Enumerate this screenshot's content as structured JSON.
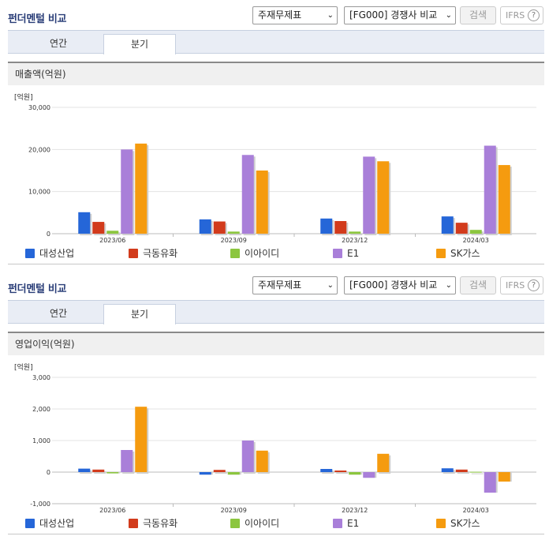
{
  "panels": [
    {
      "title": "펀더멘털 비교",
      "select1": "주재무제표",
      "select2": "[FG000] 경쟁사 비교",
      "search_label": "검색",
      "ifrs_label": "IFRS",
      "ifrs_help": "?",
      "tabs": [
        "연간",
        "분기"
      ],
      "active_tab": "분기",
      "metric": "매출액(억원)",
      "legend": [
        "대성산업",
        "극동유화",
        "이아이디",
        "E1",
        "SK가스"
      ]
    },
    {
      "title": "펀더멘털 비교",
      "select1": "주재무제표",
      "select2": "[FG000] 경쟁사 비교",
      "search_label": "검색",
      "ifrs_label": "IFRS",
      "ifrs_help": "?",
      "tabs": [
        "연간",
        "분기"
      ],
      "active_tab": "분기",
      "metric": "영업이익(억원)",
      "legend": [
        "대성산업",
        "극동유화",
        "이아이디",
        "E1",
        "SK가스"
      ]
    }
  ],
  "colors": [
    "#2566d8",
    "#d23b1c",
    "#8cc63f",
    "#a97fd9",
    "#f59b0f"
  ],
  "chart_data": [
    {
      "type": "bar",
      "unit_label": "[억원]",
      "categories": [
        "2023/06",
        "2023/09",
        "2023/12",
        "2024/03"
      ],
      "ylim": [
        0,
        30000
      ],
      "yticks": [
        0,
        10000,
        20000,
        30000
      ],
      "ytick_labels": [
        "0",
        "10,000",
        "20,000",
        "30,000"
      ],
      "grid": true,
      "legend_position": "bottom",
      "series": [
        {
          "name": "대성산업",
          "values": [
            5100,
            3400,
            3600,
            4100
          ]
        },
        {
          "name": "극동유화",
          "values": [
            2800,
            2900,
            3000,
            2600
          ]
        },
        {
          "name": "이아이디",
          "values": [
            700,
            500,
            500,
            900
          ]
        },
        {
          "name": "E1",
          "values": [
            20000,
            18700,
            18300,
            20900
          ]
        },
        {
          "name": "SK가스",
          "values": [
            21400,
            15000,
            17200,
            16300
          ]
        }
      ]
    },
    {
      "type": "bar",
      "unit_label": "[억원]",
      "categories": [
        "2023/06",
        "2023/09",
        "2023/12",
        "2024/03"
      ],
      "ylim": [
        -1000,
        3000
      ],
      "yticks": [
        -1000,
        0,
        1000,
        2000,
        3000
      ],
      "ytick_labels": [
        "-1,000",
        "0",
        "1,000",
        "2,000",
        "3,000"
      ],
      "grid": true,
      "legend_position": "bottom",
      "series": [
        {
          "name": "대성산업",
          "values": [
            110,
            -80,
            100,
            120
          ]
        },
        {
          "name": "극동유화",
          "values": [
            80,
            70,
            50,
            80
          ]
        },
        {
          "name": "이아이디",
          "values": [
            -40,
            -80,
            -80,
            10
          ]
        },
        {
          "name": "E1",
          "values": [
            700,
            1000,
            -180,
            -650
          ]
        },
        {
          "name": "SK가스",
          "values": [
            2070,
            680,
            580,
            -300
          ]
        }
      ]
    }
  ]
}
